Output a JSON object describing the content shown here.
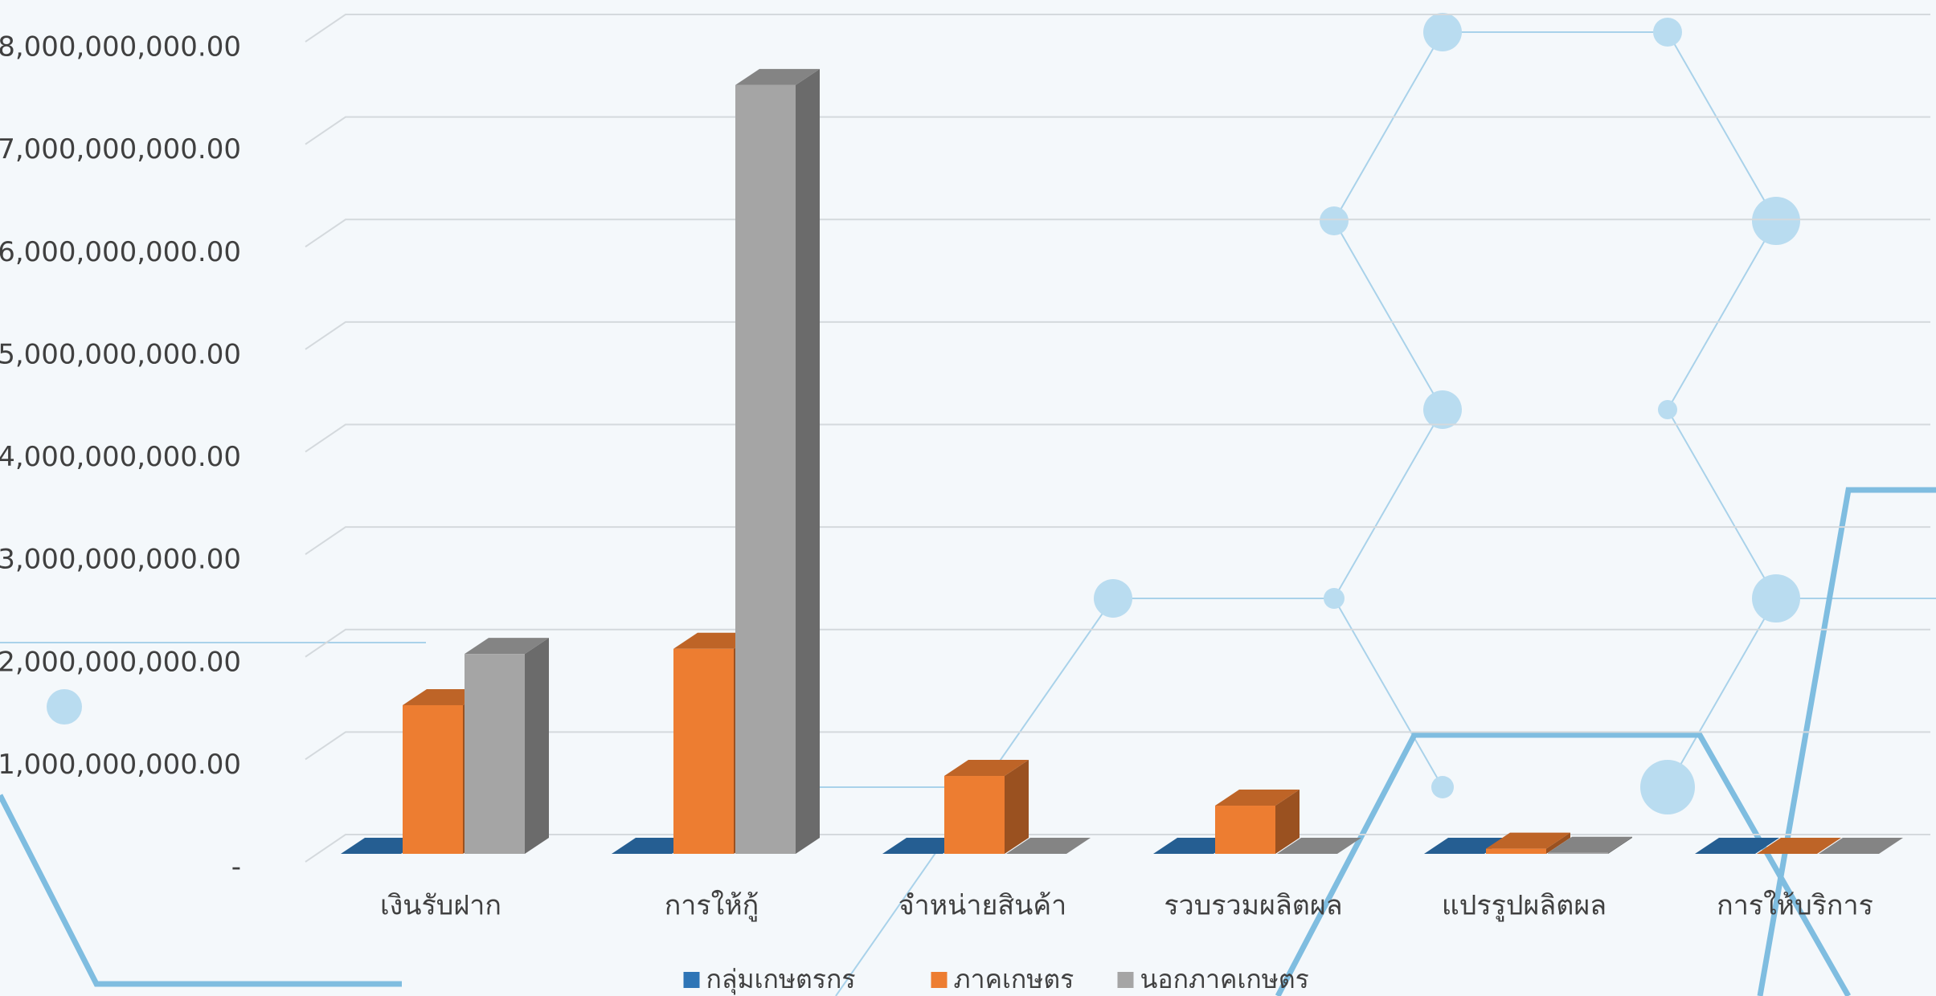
{
  "chart_data": {
    "type": "bar3d",
    "categories": [
      "เงินรับฝาก",
      "การให้กู้",
      "จำหน่ายสินค้า",
      "รวบรวมผลิตผล",
      "แปรรูปผลิตผล",
      "การให้บริการ"
    ],
    "series": [
      {
        "name": "กลุ่มเกษตรกร",
        "color": "#2e75b6",
        "values": [
          0,
          0,
          0,
          0,
          0,
          0
        ]
      },
      {
        "name": "ภาคเกษตร",
        "color": "#ed7d31",
        "values": [
          1450000000,
          2000000000,
          760000000,
          470000000,
          50000000,
          0
        ]
      },
      {
        "name": "นอกภาคเกษตร",
        "color": "#a5a5a5",
        "values": [
          1950000000,
          7500000000,
          0,
          0,
          10000000,
          0
        ]
      }
    ],
    "ylim": [
      0,
      8000000000
    ],
    "yticks": [
      {
        "value": 0,
        "label": "-"
      },
      {
        "value": 1000000000,
        "label": "1,000,000,000.00"
      },
      {
        "value": 2000000000,
        "label": "2,000,000,000.00"
      },
      {
        "value": 3000000000,
        "label": "3,000,000,000.00"
      },
      {
        "value": 4000000000,
        "label": "4,000,000,000.00"
      },
      {
        "value": 5000000000,
        "label": "5,000,000,000.00"
      },
      {
        "value": 6000000000,
        "label": "6,000,000,000.00"
      },
      {
        "value": 7000000000,
        "label": "7,000,000,000.00"
      },
      {
        "value": 8000000000,
        "label": "8,000,000,000.00"
      }
    ],
    "grid": true,
    "legend": "bottom"
  }
}
